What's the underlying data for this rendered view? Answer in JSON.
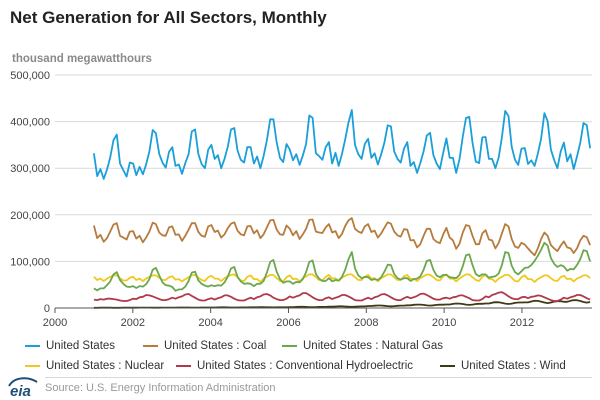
{
  "header": {
    "title": "Net Generation for All Sectors, Monthly",
    "unit_label": "thousand megawatthours"
  },
  "footer": {
    "source": "Source: U.S. Energy Information Administration",
    "logo_text": "eia"
  },
  "chart_data": {
    "type": "line",
    "title": "Net Generation for All Sectors, Monthly",
    "ylabel": "thousand megawatthours",
    "xlabel": "",
    "x_start_year": 2001,
    "x_end_year": 2013.75,
    "xlim": [
      2000,
      2013.8
    ],
    "ylim": [
      0,
      500000
    ],
    "x_ticks": [
      2000,
      2002,
      2004,
      2006,
      2008,
      2010,
      2012
    ],
    "x_tick_labels": [
      "2000",
      "2002",
      "2004",
      "2006",
      "2008",
      "2010",
      "2012"
    ],
    "y_ticks": [
      0,
      100000,
      200000,
      300000,
      400000,
      500000
    ],
    "y_tick_labels": [
      "0",
      "100,000",
      "200,000",
      "300,000",
      "400,000",
      "500,000"
    ],
    "grid": "horizontal",
    "legend_position": "bottom",
    "frequency": "monthly",
    "series": [
      {
        "name": "United States",
        "color": "#1a9fd9",
        "values": [
          332000,
          283000,
          298000,
          277000,
          297000,
          323000,
          360000,
          372000,
          310000,
          296000,
          282000,
          312000,
          310000,
          285000,
          303000,
          287000,
          308000,
          336000,
          382000,
          375000,
          331000,
          312000,
          301000,
          335000,
          345000,
          305000,
          308000,
          288000,
          311000,
          330000,
          379000,
          383000,
          330000,
          309000,
          300000,
          340000,
          350000,
          320000,
          328000,
          300000,
          320000,
          345000,
          383000,
          386000,
          338000,
          318000,
          312000,
          345000,
          345000,
          310000,
          325000,
          300000,
          326000,
          360000,
          405000,
          405000,
          355000,
          322000,
          313000,
          352000,
          340000,
          317000,
          330000,
          307000,
          327000,
          352000,
          413000,
          408000,
          332000,
          326000,
          318000,
          345000,
          356000,
          310000,
          333000,
          305000,
          331000,
          362000,
          398000,
          425000,
          350000,
          330000,
          320000,
          352000,
          363000,
          322000,
          332000,
          308000,
          330000,
          355000,
          392000,
          390000,
          336000,
          320000,
          312000,
          342000,
          356000,
          305000,
          313000,
          290000,
          311000,
          336000,
          370000,
          376000,
          328000,
          310000,
          298000,
          333000,
          364000,
          322000,
          322000,
          290000,
          319000,
          368000,
          408000,
          410000,
          355000,
          314000,
          311000,
          366000,
          367000,
          320000,
          320000,
          300000,
          323000,
          366000,
          423000,
          412000,
          346000,
          318000,
          307000,
          342000,
          343000,
          309000,
          317000,
          305000,
          331000,
          363000,
          418000,
          401000,
          340000,
          318000,
          300000,
          336000,
          355000,
          315000,
          330000,
          298000,
          325000,
          355000,
          397000,
          392000,
          343000
        ]
      },
      {
        "name": "United States : Coal",
        "color": "#b77b3c",
        "values": [
          177000,
          150000,
          157000,
          142000,
          150000,
          164000,
          179000,
          182000,
          155000,
          151000,
          147000,
          164000,
          165000,
          149000,
          155000,
          141000,
          151000,
          164000,
          183000,
          180000,
          162000,
          156000,
          155000,
          173000,
          175000,
          157000,
          158000,
          144000,
          155000,
          168000,
          182000,
          182000,
          163000,
          155000,
          153000,
          175000,
          178000,
          163000,
          166000,
          151000,
          158000,
          171000,
          181000,
          184000,
          166000,
          158000,
          156000,
          175000,
          176000,
          160000,
          167000,
          150000,
          158000,
          173000,
          188000,
          189000,
          168000,
          158000,
          157000,
          177000,
          170000,
          156000,
          165000,
          148000,
          158000,
          170000,
          189000,
          190000,
          164000,
          162000,
          161000,
          173000,
          180000,
          162000,
          165000,
          150000,
          159000,
          176000,
          188000,
          193000,
          170000,
          164000,
          161000,
          175000,
          180000,
          163000,
          166000,
          151000,
          160000,
          172000,
          184000,
          181000,
          164000,
          156000,
          153000,
          169000,
          168000,
          145000,
          146000,
          130000,
          137000,
          155000,
          170000,
          170000,
          148000,
          142000,
          139000,
          158000,
          172000,
          151000,
          145000,
          127000,
          138000,
          162000,
          178000,
          176000,
          155000,
          137000,
          137000,
          160000,
          167000,
          147000,
          145000,
          128000,
          140000,
          160000,
          180000,
          175000,
          148000,
          132000,
          129000,
          140000,
          136000,
          128000,
          120000,
          113000,
          128000,
          148000,
          162000,
          155000,
          135000,
          128000,
          122000,
          134000,
          143000,
          130000,
          128000,
          118000,
          128000,
          145000,
          155000,
          152000,
          135000
        ]
      },
      {
        "name": "United States : Natural Gas",
        "color": "#6aa84f",
        "values": [
          42000,
          38000,
          42000,
          42000,
          49000,
          57000,
          72000,
          77000,
          60000,
          52000,
          46000,
          45000,
          47000,
          43000,
          47000,
          46000,
          51000,
          62000,
          82000,
          86000,
          70000,
          55000,
          49000,
          48000,
          45000,
          37000,
          40000,
          40000,
          46000,
          58000,
          76000,
          78000,
          59000,
          52000,
          48000,
          46000,
          49000,
          47000,
          49000,
          48000,
          55000,
          67000,
          85000,
          88000,
          67000,
          57000,
          52000,
          53000,
          52000,
          47000,
          52000,
          52000,
          58000,
          76000,
          99000,
          103000,
          78000,
          62000,
          54000,
          57000,
          57000,
          52000,
          56000,
          55000,
          62000,
          77000,
          99000,
          102000,
          73000,
          63000,
          58000,
          58000,
          64000,
          57000,
          60000,
          59000,
          67000,
          82000,
          105000,
          120000,
          85000,
          70000,
          64000,
          67000,
          66000,
          60000,
          62000,
          60000,
          66000,
          78000,
          93000,
          92000,
          73000,
          64000,
          61000,
          64000,
          64000,
          58000,
          62000,
          63000,
          68000,
          82000,
          101000,
          103000,
          82000,
          70000,
          66000,
          71000,
          71000,
          66000,
          65000,
          64000,
          71000,
          90000,
          113000,
          115000,
          92000,
          73000,
          68000,
          72000,
          72000,
          65000,
          67000,
          68000,
          74000,
          92000,
          120000,
          118000,
          91000,
          77000,
          72000,
          79000,
          86000,
          87000,
          92000,
          101000,
          112000,
          125000,
          140000,
          134000,
          107000,
          95000,
          88000,
          92000,
          89000,
          80000,
          84000,
          83000,
          92000,
          105000,
          124000,
          122000,
          100000
        ]
      },
      {
        "name": "United States : Nuclear",
        "color": "#f2c81e",
        "values": [
          67000,
          60000,
          63000,
          58000,
          63000,
          67000,
          70000,
          70000,
          64000,
          59000,
          59000,
          65000,
          67000,
          60000,
          63000,
          58000,
          63000,
          67000,
          70000,
          70000,
          65000,
          60000,
          60000,
          66000,
          68000,
          61000,
          62000,
          57000,
          62000,
          66000,
          70000,
          71000,
          65000,
          60000,
          58000,
          66000,
          69000,
          63000,
          63000,
          58000,
          64000,
          68000,
          71000,
          72000,
          66000,
          59000,
          58000,
          67000,
          70000,
          62000,
          62000,
          56000,
          63000,
          67000,
          71000,
          71000,
          64000,
          58000,
          57000,
          66000,
          70000,
          62000,
          63000,
          57000,
          64000,
          68000,
          72000,
          72000,
          66000,
          60000,
          59000,
          67000,
          71000,
          63000,
          64000,
          58000,
          65000,
          69000,
          72000,
          72000,
          66000,
          60000,
          60000,
          67000,
          71000,
          63000,
          64000,
          57000,
          64000,
          68000,
          72000,
          72000,
          66000,
          60000,
          60000,
          68000,
          71000,
          62000,
          63000,
          58000,
          64000,
          68000,
          72000,
          71000,
          66000,
          60000,
          59000,
          68000,
          72000,
          63000,
          63000,
          57000,
          63000,
          68000,
          72000,
          72000,
          66000,
          60000,
          58000,
          67000,
          71000,
          63000,
          62000,
          56000,
          63000,
          67000,
          71000,
          71000,
          65000,
          58000,
          57000,
          66000,
          70000,
          62000,
          62000,
          56000,
          62000,
          66000,
          70000,
          70000,
          64000,
          59000,
          58000,
          66000,
          69000,
          62000,
          63000,
          57000,
          63000,
          66000,
          70000,
          70000,
          64000
        ]
      },
      {
        "name": "United States : Conventional Hydroelectric",
        "color": "#b03a4a",
        "values": [
          18000,
          17000,
          19000,
          18000,
          20000,
          20000,
          19000,
          18000,
          16000,
          15000,
          15000,
          17000,
          20000,
          19000,
          23000,
          24000,
          28000,
          27000,
          25000,
          22000,
          19000,
          17000,
          17000,
          19000,
          22000,
          20000,
          23000,
          25000,
          29000,
          30000,
          26000,
          22000,
          18000,
          16000,
          16000,
          19000,
          21000,
          18000,
          21000,
          23000,
          27000,
          27000,
          24000,
          20000,
          17000,
          16000,
          16000,
          19000,
          22000,
          19000,
          23000,
          25000,
          29000,
          30000,
          27000,
          22000,
          19000,
          17000,
          17000,
          20000,
          25000,
          22000,
          25000,
          27000,
          32000,
          32000,
          28000,
          23000,
          19000,
          17000,
          17000,
          21000,
          23000,
          19000,
          22000,
          24000,
          28000,
          28000,
          25000,
          21000,
          17000,
          16000,
          16000,
          19000,
          22000,
          19000,
          23000,
          25000,
          29000,
          30000,
          27000,
          23000,
          19000,
          17000,
          17000,
          21000,
          24000,
          21000,
          23000,
          26000,
          30000,
          31000,
          28000,
          24000,
          20000,
          18000,
          18000,
          21000,
          22000,
          20000,
          23000,
          24000,
          27000,
          27000,
          24000,
          21000,
          17000,
          16000,
          16000,
          19000,
          25000,
          23000,
          28000,
          30000,
          33000,
          34000,
          30000,
          25000,
          21000,
          19000,
          19000,
          23000,
          24000,
          21000,
          24000,
          25000,
          27000,
          26000,
          23000,
          20000,
          17000,
          15000,
          15000,
          18000,
          22000,
          20000,
          23000,
          25000,
          28000,
          28000,
          25000,
          21000,
          18000
        ]
      },
      {
        "name": "United States : Wind",
        "color": "#3f3a14",
        "values": [
          500,
          500,
          600,
          700,
          700,
          600,
          500,
          500,
          500,
          600,
          600,
          600,
          700,
          700,
          800,
          900,
          900,
          800,
          700,
          700,
          700,
          800,
          800,
          800,
          900,
          900,
          1000,
          1100,
          1100,
          1000,
          900,
          900,
          900,
          1000,
          1000,
          1000,
          1100,
          1100,
          1300,
          1400,
          1400,
          1300,
          1100,
          1000,
          1100,
          1200,
          1300,
          1300,
          1400,
          1400,
          1600,
          1800,
          1800,
          1600,
          1400,
          1300,
          1400,
          1500,
          1600,
          1600,
          2000,
          2000,
          2300,
          2500,
          2500,
          2300,
          2000,
          1800,
          2000,
          2300,
          2400,
          2400,
          2800,
          2800,
          3300,
          3600,
          3600,
          3300,
          2800,
          2600,
          2800,
          3300,
          3500,
          3500,
          4200,
          4200,
          4900,
          5400,
          5400,
          4800,
          4100,
          3700,
          4100,
          4800,
          5100,
          5100,
          5800,
          5800,
          6800,
          7400,
          7400,
          6600,
          5600,
          5100,
          5700,
          6600,
          7000,
          7000,
          7500,
          7500,
          8700,
          9600,
          9500,
          8500,
          7300,
          6600,
          7300,
          8500,
          9000,
          9000,
          9700,
          9700,
          11300,
          12400,
          12300,
          11000,
          9400,
          8500,
          9400,
          11000,
          11700,
          11700,
          12000,
          12000,
          14000,
          15400,
          15300,
          13700,
          11700,
          10600,
          11700,
          13700,
          14500,
          14500,
          13200,
          13200,
          15400,
          16900,
          16800,
          15000,
          12800,
          11600,
          12800
        ]
      }
    ]
  }
}
